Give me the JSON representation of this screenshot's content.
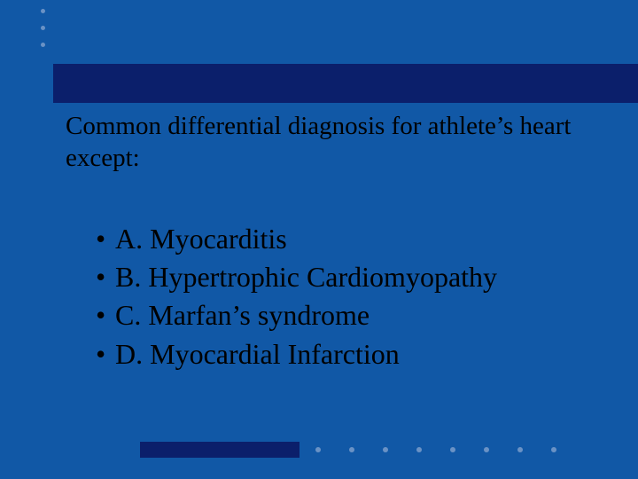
{
  "slide": {
    "background_color": "#1158a6",
    "accent_color": "#0b1f6b",
    "dot_color": "#6a92c5",
    "text_color": "#000000",
    "title": "Common differential diagnosis for athlete’s heart except:",
    "title_fontsize": 29,
    "bullet_fontsize": 32,
    "bullets": [
      "A. Myocarditis",
      "B. Hypertrophic Cardiomyopathy",
      "C. Marfan’s syndrome",
      "D. Myocardial Infarction"
    ],
    "decor": {
      "top_dot_count": 3,
      "bottom_dot_count": 8
    }
  }
}
